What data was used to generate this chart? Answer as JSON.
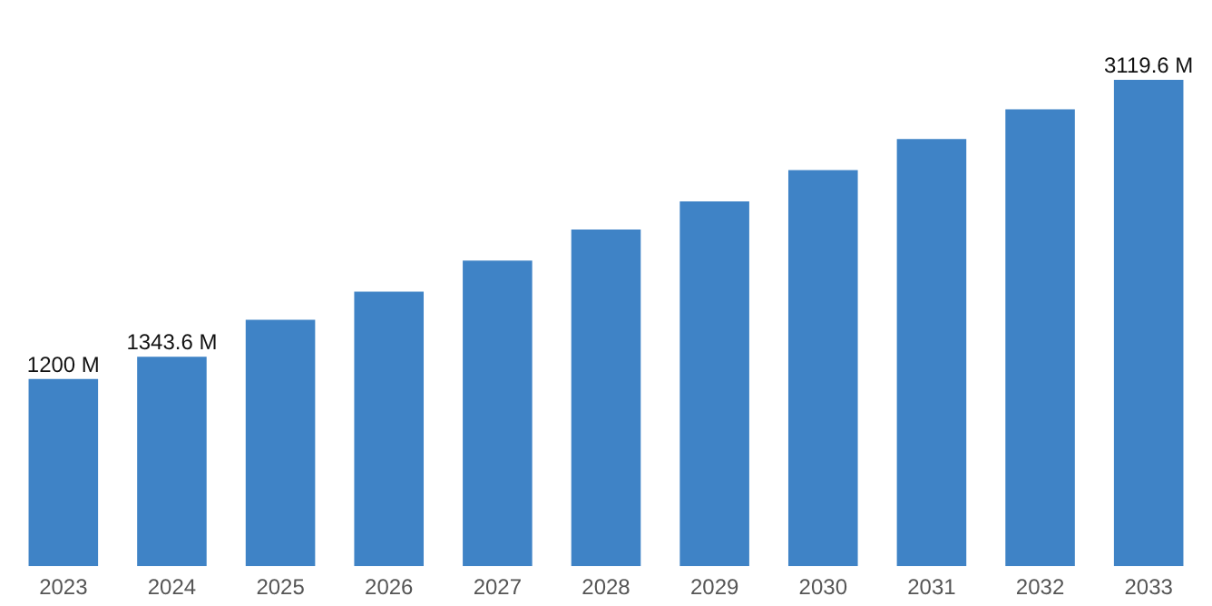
{
  "chart_data": {
    "type": "bar",
    "categories": [
      "2023",
      "2024",
      "2025",
      "2026",
      "2027",
      "2028",
      "2029",
      "2030",
      "2031",
      "2032",
      "2033"
    ],
    "values": [
      1200,
      1343.6,
      1580,
      1760,
      1960,
      2160,
      2340,
      2540,
      2740,
      2930,
      3119.6
    ],
    "value_labels": [
      "1200 M",
      "1343.6 M",
      null,
      null,
      null,
      null,
      null,
      null,
      null,
      null,
      "3119.6 M"
    ],
    "color": "#3f83c6",
    "grid": false
  }
}
